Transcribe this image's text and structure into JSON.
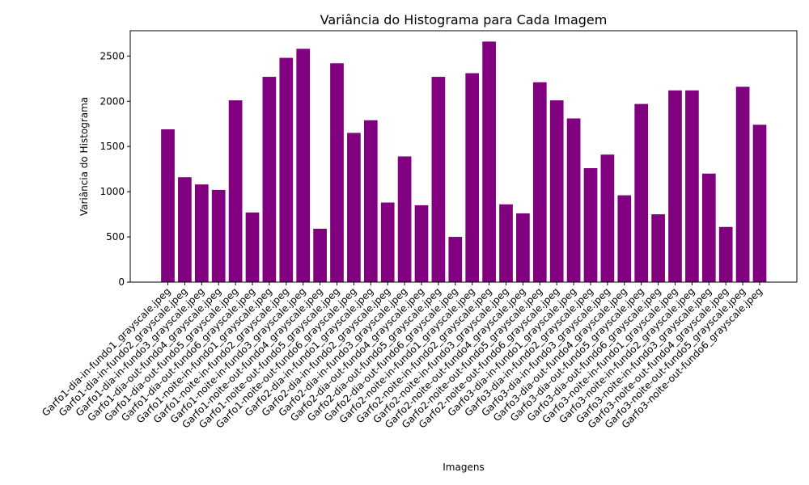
{
  "chart_data": {
    "type": "bar",
    "title": "Variância do Histograma para Cada Imagem",
    "xlabel": "Imagens",
    "ylabel": "Variância do Histograma",
    "ylim": [
      0,
      2780
    ],
    "yticks": [
      0,
      500,
      1000,
      1500,
      2000,
      2500
    ],
    "grid": false,
    "bar_color": "#800080",
    "categories": [
      "Garfo1-dia-in-fundo1_grayscale.jpeg",
      "Garfo1-dia-in-fundo2_grayscale.jpeg",
      "Garfo1-dia-in-fundo3_grayscale.jpeg",
      "Garfo1-dia-out-fundo4_grayscale.jpeg",
      "Garfo1-dia-out-fundo5_grayscale.jpeg",
      "Garfo1-dia-out-fundo6_grayscale.jpeg",
      "Garfo1-noite-in-fundo1_grayscale.jpeg",
      "Garfo1-noite-in-fundo2_grayscale.jpeg",
      "Garfo1-noite-in-fundo3_grayscale.jpeg",
      "Garfo1-noite-out-fundo4_grayscale.jpeg",
      "Garfo1-noite-out-fundo5_grayscale.jpeg",
      "Garfo1-noite-out-fundo6_grayscale.jpeg",
      "Garfo2-dia-in-fundo1_grayscale.jpeg",
      "Garfo2-dia-in-fundo2_grayscale.jpeg",
      "Garfo2-dia-in-fundo3_grayscale.jpeg",
      "Garfo2-dia-out-fundo4_grayscale.jpeg",
      "Garfo2-dia-out-fundo5_grayscale.jpeg",
      "Garfo2-dia-out-fundo6_grayscale.jpeg",
      "Garfo2-noite-in-fundo1_grayscale.jpeg",
      "Garfo2-noite-in-fundo2_grayscale.jpeg",
      "Garfo2-noite-in-fundo3_grayscale.jpeg",
      "Garfo2-noite-out-fundo4_grayscale.jpeg",
      "Garfo2-noite-out-fundo5_grayscale.jpeg",
      "Garfo2-noite-out-fundo6_grayscale.jpeg",
      "Garfo3-dia-in-fundo1_grayscale.jpeg",
      "Garfo3-dia-in-fundo2_grayscale.jpeg",
      "Garfo3-dia-in-fundo3_grayscale.jpeg",
      "Garfo3-dia-out-fundo4_grayscale.jpeg",
      "Garfo3-dia-out-fundo5_grayscale.jpeg",
      "Garfo3-dia-out-fundo6_grayscale.jpeg",
      "Garfo3-noite-in-fundo1_grayscale.jpeg",
      "Garfo3-noite-in-fundo2_grayscale.jpeg",
      "Garfo3-noite-in-fundo3_grayscale.jpeg",
      "Garfo3-noite-out-fundo4_grayscale.jpeg",
      "Garfo3-noite-out-fundo5_grayscale.jpeg",
      "Garfo3-noite-out-fundo6_grayscale.jpeg"
    ],
    "values": [
      1690,
      1160,
      1080,
      1020,
      2010,
      770,
      2270,
      2480,
      2580,
      590,
      2420,
      1650,
      1790,
      880,
      1390,
      850,
      2270,
      500,
      2310,
      2660,
      860,
      760,
      2210,
      2010,
      1810,
      1260,
      1410,
      960,
      1970,
      750,
      2120,
      2120,
      1200,
      610,
      2160,
      1740
    ]
  }
}
